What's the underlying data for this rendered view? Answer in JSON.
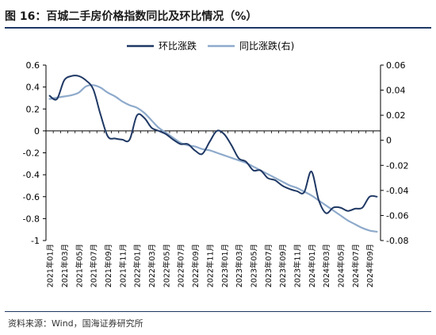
{
  "header": {
    "title": "图 16：百城二手房价格指数同比及环比情况（%）"
  },
  "footer": {
    "source": "资料来源：Wind，国海证券研究所"
  },
  "colors": {
    "mom": "#1f3864",
    "yoy": "#8eaacb",
    "axis": "#000000",
    "rule": "#1f3864"
  },
  "chart_data": {
    "type": "line",
    "title": "",
    "legend_position": "top-center",
    "grid": false,
    "x": [
      "2021年01月",
      "2021年02月",
      "2021年03月",
      "2021年04月",
      "2021年05月",
      "2021年06月",
      "2021年07月",
      "2021年08月",
      "2021年09月",
      "2021年10月",
      "2021年11月",
      "2021年12月",
      "2022年01月",
      "2022年02月",
      "2022年03月",
      "2022年04月",
      "2022年05月",
      "2022年06月",
      "2022年07月",
      "2022年08月",
      "2022年09月",
      "2022年10月",
      "2022年11月",
      "2022年12月",
      "2023年01月",
      "2023年02月",
      "2023年03月",
      "2023年04月",
      "2023年05月",
      "2023年06月",
      "2023年07月",
      "2023年08月",
      "2023年09月",
      "2023年10月",
      "2023年11月",
      "2023年12月",
      "2024年01月",
      "2024年02月",
      "2024年03月",
      "2024年04月",
      "2024年05月",
      "2024年06月",
      "2024年07月",
      "2024年08月",
      "2024年09月",
      "2024年10月"
    ],
    "x_tick_labels": [
      "2021年01月",
      "2021年03月",
      "2021年05月",
      "2021年07月",
      "2021年09月",
      "2021年11月",
      "2022年01月",
      "2022年03月",
      "2022年05月",
      "2022年07月",
      "2022年09月",
      "2022年11月",
      "2023年01月",
      "2023年03月",
      "2023年05月",
      "2023年07月",
      "2023年09月",
      "2023年11月",
      "2024年01月",
      "2024年03月",
      "2024年05月",
      "2024年07月",
      "2024年09月"
    ],
    "y_left": {
      "min": -1,
      "max": 0.6,
      "ticks": [
        -1,
        -0.8,
        -0.6,
        -0.4,
        -0.2,
        0,
        0.2,
        0.4,
        0.6
      ]
    },
    "y_right": {
      "min": -0.08,
      "max": 0.06,
      "ticks": [
        -0.08,
        -0.06,
        -0.04,
        -0.02,
        0,
        0.02,
        0.04,
        0.06
      ]
    },
    "series": [
      {
        "name": "环比涨跌",
        "axis": "left",
        "values": [
          0.32,
          0.29,
          0.46,
          0.5,
          0.5,
          0.46,
          0.38,
          0.15,
          -0.05,
          -0.07,
          -0.08,
          -0.08,
          0.14,
          0.12,
          0.03,
          0.0,
          -0.03,
          -0.08,
          -0.12,
          -0.12,
          -0.18,
          -0.21,
          -0.1,
          0.0,
          -0.03,
          -0.13,
          -0.25,
          -0.28,
          -0.36,
          -0.36,
          -0.43,
          -0.45,
          -0.5,
          -0.53,
          -0.55,
          -0.56,
          -0.37,
          -0.63,
          -0.75,
          -0.7,
          -0.7,
          -0.73,
          -0.71,
          -0.7,
          -0.6,
          -0.6
        ]
      },
      {
        "name": "同比涨跌(右)",
        "axis": "right",
        "values": [
          0.033,
          0.034,
          0.035,
          0.036,
          0.038,
          0.043,
          0.044,
          0.042,
          0.038,
          0.035,
          0.031,
          0.028,
          0.026,
          0.022,
          0.016,
          0.01,
          0.006,
          0.002,
          -0.002,
          -0.004,
          -0.005,
          -0.007,
          -0.008,
          -0.01,
          -0.012,
          -0.014,
          -0.016,
          -0.018,
          -0.021,
          -0.024,
          -0.027,
          -0.03,
          -0.033,
          -0.036,
          -0.038,
          -0.041,
          -0.044,
          -0.048,
          -0.052,
          -0.056,
          -0.06,
          -0.064,
          -0.067,
          -0.07,
          -0.072,
          -0.073
        ]
      }
    ]
  }
}
